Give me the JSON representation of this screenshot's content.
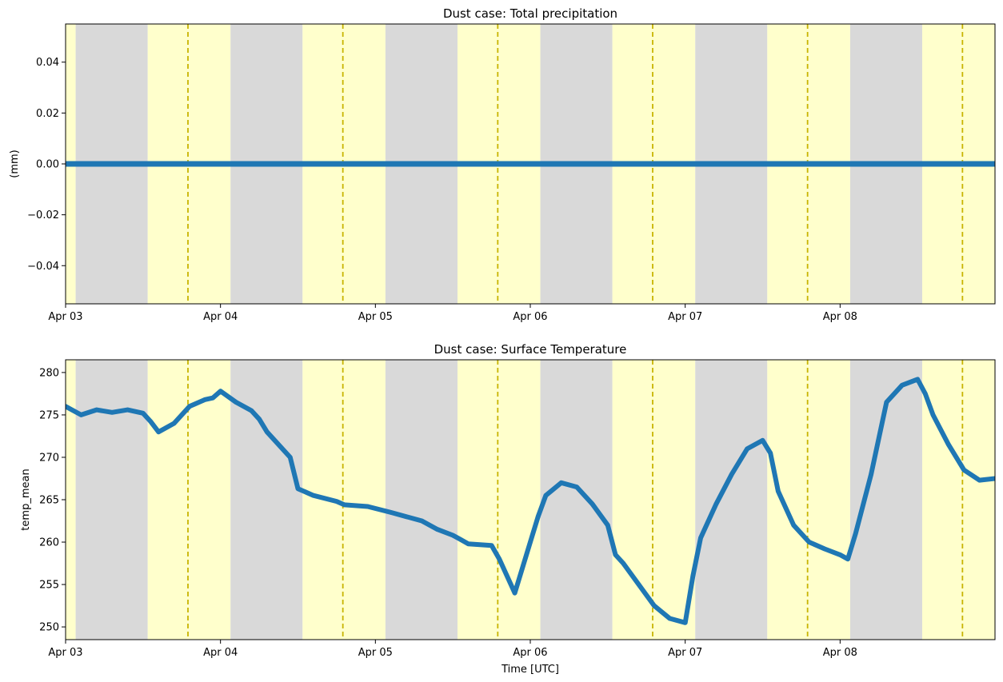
{
  "chart_data": [
    {
      "type": "line",
      "title": "Dust case: Total precipitation",
      "xlabel": "",
      "ylabel": "(mm)",
      "xlim": [
        0,
        6.0
      ],
      "ylim": [
        -0.055,
        0.055
      ],
      "x_ticks": [
        {
          "value": 0,
          "label": "Apr 03"
        },
        {
          "value": 1,
          "label": "Apr 04"
        },
        {
          "value": 2,
          "label": "Apr 05"
        },
        {
          "value": 3,
          "label": "Apr 06"
        },
        {
          "value": 4,
          "label": "Apr 07"
        },
        {
          "value": 5,
          "label": "Apr 08"
        }
      ],
      "y_ticks": [
        {
          "value": 0.04,
          "label": "0.04"
        },
        {
          "value": 0.02,
          "label": "0.02"
        },
        {
          "value": 0.0,
          "label": "0.00"
        },
        {
          "value": -0.02,
          "label": "−0.02"
        },
        {
          "value": -0.04,
          "label": "−0.04"
        }
      ],
      "series": [
        {
          "name": "precipitation",
          "color": "#1f77b4",
          "x": [
            0,
            6.0
          ],
          "y": [
            0,
            0
          ]
        }
      ]
    },
    {
      "type": "line",
      "title": "Dust case: Surface Temperature",
      "xlabel": "Time [UTC]",
      "ylabel": "temp_mean",
      "xlim": [
        0,
        6.0
      ],
      "ylim": [
        248.5,
        281.5
      ],
      "x_ticks": [
        {
          "value": 0,
          "label": "Apr 03"
        },
        {
          "value": 1,
          "label": "Apr 04"
        },
        {
          "value": 2,
          "label": "Apr 05"
        },
        {
          "value": 3,
          "label": "Apr 06"
        },
        {
          "value": 4,
          "label": "Apr 07"
        },
        {
          "value": 5,
          "label": "Apr 08"
        }
      ],
      "y_ticks": [
        {
          "value": 280,
          "label": "280"
        },
        {
          "value": 275,
          "label": "275"
        },
        {
          "value": 270,
          "label": "270"
        },
        {
          "value": 265,
          "label": "265"
        },
        {
          "value": 260,
          "label": "260"
        },
        {
          "value": 255,
          "label": "255"
        },
        {
          "value": 250,
          "label": "250"
        }
      ],
      "series": [
        {
          "name": "temp_mean",
          "color": "#1f77b4",
          "x": [
            0,
            0.1,
            0.2,
            0.3,
            0.4,
            0.5,
            0.55,
            0.6,
            0.7,
            0.8,
            0.9,
            0.95,
            1.0,
            1.1,
            1.2,
            1.25,
            1.3,
            1.45,
            1.5,
            1.6,
            1.75,
            1.8,
            1.95,
            2.1,
            2.3,
            2.4,
            2.5,
            2.55,
            2.6,
            2.75,
            2.8,
            2.9,
            3.0,
            3.05,
            3.1,
            3.2,
            3.3,
            3.4,
            3.5,
            3.55,
            3.6,
            3.7,
            3.8,
            3.9,
            4.0,
            4.05,
            4.1,
            4.2,
            4.3,
            4.4,
            4.5,
            4.55,
            4.6,
            4.7,
            4.8,
            4.9,
            5.0,
            5.05,
            5.1,
            5.2,
            5.3,
            5.4,
            5.5,
            5.55,
            5.6,
            5.7,
            5.8,
            5.9,
            6.0
          ],
          "y": [
            276.0,
            275.0,
            275.6,
            275.3,
            275.6,
            275.2,
            274.2,
            273.0,
            274.0,
            276.0,
            276.8,
            277.0,
            277.8,
            276.5,
            275.5,
            274.5,
            273.0,
            270.0,
            266.3,
            265.5,
            264.8,
            264.4,
            264.2,
            263.5,
            262.5,
            261.5,
            260.8,
            260.3,
            259.8,
            259.6,
            258.0,
            254.0,
            260.0,
            263.0,
            265.5,
            267.0,
            266.5,
            264.5,
            262.0,
            258.5,
            257.5,
            255.0,
            252.5,
            251.0,
            250.5,
            256.0,
            260.5,
            264.5,
            268.0,
            271.0,
            272.0,
            270.5,
            266.0,
            262.0,
            260.0,
            259.2,
            258.5,
            258.0,
            261.0,
            268.0,
            276.5,
            278.5,
            279.2,
            277.5,
            275.0,
            271.5,
            268.5,
            267.3,
            267.5
          ]
        }
      ]
    }
  ]
}
